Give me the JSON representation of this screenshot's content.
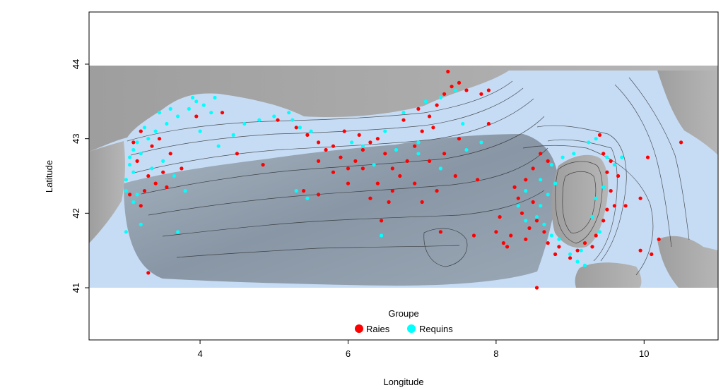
{
  "chart_data": {
    "type": "scatter",
    "xlabel": "Longitude",
    "ylabel": "Latitude",
    "xlim": [
      2.5,
      11.0
    ],
    "ylim": [
      40.3,
      44.7
    ],
    "raster_extent": {
      "lon": [
        2.5,
        11.0
      ],
      "lat": [
        41.0,
        44.0
      ]
    },
    "x_ticks": [
      {
        "value": 4,
        "label": "4"
      },
      {
        "value": 6,
        "label": "6"
      },
      {
        "value": 8,
        "label": "8"
      },
      {
        "value": 10,
        "label": "10"
      }
    ],
    "y_ticks": [
      {
        "value": 41,
        "label": "41"
      },
      {
        "value": 42,
        "label": "42"
      },
      {
        "value": 43,
        "label": "43"
      },
      {
        "value": 44,
        "label": "44"
      }
    ],
    "legend": {
      "title": "Groupe",
      "placement": "bottom-center",
      "entries": [
        {
          "label": "Raies",
          "color": "#ff0000"
        },
        {
          "label": "Requins",
          "color": "#00ffff"
        }
      ]
    },
    "colors": {
      "sea_shallow": "#c6dcf4",
      "sea_deep": "#8c9aa8",
      "land": "#a9a9a9",
      "contour": "#222222",
      "frame": "#000000"
    },
    "series": [
      {
        "name": "Raies",
        "color": "#ff0000",
        "points": [
          [
            3.25,
            42.3
          ],
          [
            3.2,
            42.1
          ],
          [
            3.3,
            42.5
          ],
          [
            3.15,
            42.7
          ],
          [
            3.35,
            42.9
          ],
          [
            3.45,
            43.0
          ],
          [
            3.6,
            42.8
          ],
          [
            3.75,
            42.6
          ],
          [
            3.5,
            42.55
          ],
          [
            3.4,
            42.4
          ],
          [
            3.1,
            42.95
          ],
          [
            3.2,
            43.1
          ],
          [
            3.55,
            42.35
          ],
          [
            3.3,
            41.2
          ],
          [
            3.05,
            42.25
          ],
          [
            3.95,
            43.3
          ],
          [
            4.3,
            43.35
          ],
          [
            4.5,
            42.8
          ],
          [
            4.85,
            42.65
          ],
          [
            5.05,
            43.25
          ],
          [
            5.3,
            43.15
          ],
          [
            5.45,
            43.05
          ],
          [
            5.6,
            42.95
          ],
          [
            5.7,
            42.85
          ],
          [
            5.8,
            42.9
          ],
          [
            5.9,
            42.75
          ],
          [
            6.0,
            42.6
          ],
          [
            6.1,
            42.7
          ],
          [
            6.2,
            42.85
          ],
          [
            6.3,
            42.95
          ],
          [
            6.4,
            43.0
          ],
          [
            6.5,
            42.8
          ],
          [
            6.6,
            42.6
          ],
          [
            6.7,
            42.5
          ],
          [
            6.8,
            42.7
          ],
          [
            6.9,
            42.9
          ],
          [
            7.0,
            43.1
          ],
          [
            7.1,
            43.3
          ],
          [
            7.2,
            43.45
          ],
          [
            7.3,
            43.6
          ],
          [
            7.4,
            43.7
          ],
          [
            7.5,
            43.75
          ],
          [
            7.6,
            43.65
          ],
          [
            7.8,
            43.6
          ],
          [
            7.9,
            43.2
          ],
          [
            7.5,
            43.0
          ],
          [
            7.3,
            42.8
          ],
          [
            7.1,
            42.7
          ],
          [
            6.9,
            42.4
          ],
          [
            6.6,
            42.3
          ],
          [
            6.4,
            42.4
          ],
          [
            6.2,
            42.6
          ],
          [
            6.0,
            42.4
          ],
          [
            5.8,
            42.55
          ],
          [
            5.6,
            42.7
          ],
          [
            5.4,
            42.3
          ],
          [
            5.6,
            42.25
          ],
          [
            6.55,
            42.15
          ],
          [
            6.45,
            41.9
          ],
          [
            7.25,
            41.75
          ],
          [
            7.45,
            42.5
          ],
          [
            7.75,
            42.45
          ],
          [
            7.0,
            42.15
          ],
          [
            7.2,
            42.3
          ],
          [
            6.3,
            42.2
          ],
          [
            5.95,
            43.1
          ],
          [
            6.15,
            43.05
          ],
          [
            6.75,
            43.25
          ],
          [
            6.95,
            43.4
          ],
          [
            7.15,
            43.15
          ],
          [
            8.3,
            42.2
          ],
          [
            8.4,
            42.45
          ],
          [
            8.5,
            42.6
          ],
          [
            8.6,
            42.8
          ],
          [
            8.7,
            42.7
          ],
          [
            8.35,
            42.0
          ],
          [
            8.45,
            41.8
          ],
          [
            8.55,
            41.9
          ],
          [
            8.65,
            41.75
          ],
          [
            8.2,
            41.7
          ],
          [
            8.1,
            41.6
          ],
          [
            8.0,
            41.75
          ],
          [
            8.05,
            41.95
          ],
          [
            8.25,
            42.35
          ],
          [
            8.15,
            41.55
          ],
          [
            8.4,
            41.65
          ],
          [
            8.5,
            42.15
          ],
          [
            8.8,
            41.45
          ],
          [
            9.0,
            41.4
          ],
          [
            9.1,
            41.5
          ],
          [
            9.2,
            41.6
          ],
          [
            9.3,
            41.55
          ],
          [
            9.35,
            41.7
          ],
          [
            9.45,
            41.9
          ],
          [
            9.5,
            42.05
          ],
          [
            9.55,
            42.3
          ],
          [
            9.5,
            42.55
          ],
          [
            9.45,
            42.8
          ],
          [
            9.4,
            43.05
          ],
          [
            9.55,
            42.7
          ],
          [
            9.6,
            42.1
          ],
          [
            9.65,
            42.5
          ],
          [
            9.95,
            42.2
          ],
          [
            9.75,
            42.1
          ],
          [
            8.85,
            41.55
          ],
          [
            8.7,
            41.6
          ],
          [
            9.95,
            41.5
          ],
          [
            10.1,
            41.45
          ],
          [
            10.2,
            41.65
          ],
          [
            10.05,
            42.75
          ],
          [
            10.5,
            42.95
          ],
          [
            8.55,
            41.0
          ],
          [
            7.7,
            41.7
          ],
          [
            7.35,
            43.9
          ],
          [
            7.9,
            43.65
          ]
        ]
      },
      {
        "name": "Requins",
        "color": "#00ffff",
        "points": [
          [
            3.05,
            42.75
          ],
          [
            3.1,
            42.85
          ],
          [
            3.15,
            42.95
          ],
          [
            3.05,
            42.65
          ],
          [
            3.1,
            42.55
          ],
          [
            3.0,
            42.45
          ],
          [
            3.2,
            42.8
          ],
          [
            3.3,
            43.0
          ],
          [
            3.4,
            43.1
          ],
          [
            3.55,
            43.2
          ],
          [
            3.7,
            43.3
          ],
          [
            3.85,
            43.4
          ],
          [
            3.95,
            43.5
          ],
          [
            4.05,
            43.45
          ],
          [
            4.15,
            43.35
          ],
          [
            4.2,
            43.55
          ],
          [
            3.9,
            43.55
          ],
          [
            3.6,
            43.4
          ],
          [
            3.45,
            43.35
          ],
          [
            3.25,
            43.15
          ],
          [
            3.0,
            42.3
          ],
          [
            3.15,
            42.25
          ],
          [
            3.1,
            42.15
          ],
          [
            3.35,
            42.6
          ],
          [
            3.5,
            42.7
          ],
          [
            3.65,
            42.5
          ],
          [
            4.0,
            43.1
          ],
          [
            4.25,
            42.9
          ],
          [
            4.45,
            43.05
          ],
          [
            4.6,
            43.2
          ],
          [
            4.8,
            43.25
          ],
          [
            5.0,
            43.3
          ],
          [
            5.2,
            43.35
          ],
          [
            5.25,
            43.25
          ],
          [
            5.35,
            43.15
          ],
          [
            5.5,
            43.1
          ],
          [
            3.2,
            41.85
          ],
          [
            3.0,
            41.75
          ],
          [
            3.7,
            41.75
          ],
          [
            3.8,
            42.3
          ],
          [
            5.3,
            42.3
          ],
          [
            5.45,
            42.2
          ],
          [
            6.2,
            42.9
          ],
          [
            6.5,
            43.1
          ],
          [
            6.75,
            43.35
          ],
          [
            7.05,
            43.5
          ],
          [
            7.25,
            43.55
          ],
          [
            7.45,
            43.65
          ],
          [
            7.55,
            43.2
          ],
          [
            7.6,
            42.85
          ],
          [
            7.8,
            42.95
          ],
          [
            7.25,
            42.6
          ],
          [
            6.95,
            42.95
          ],
          [
            6.65,
            42.85
          ],
          [
            6.35,
            42.65
          ],
          [
            6.05,
            42.95
          ],
          [
            6.45,
            41.7
          ],
          [
            6.95,
            42.8
          ],
          [
            8.6,
            42.45
          ],
          [
            8.75,
            42.65
          ],
          [
            8.9,
            42.75
          ],
          [
            9.05,
            42.8
          ],
          [
            9.25,
            42.95
          ],
          [
            9.35,
            43.0
          ],
          [
            9.5,
            42.75
          ],
          [
            9.6,
            42.65
          ],
          [
            9.45,
            42.35
          ],
          [
            9.35,
            42.2
          ],
          [
            9.3,
            41.95
          ],
          [
            9.4,
            41.75
          ],
          [
            8.7,
            42.25
          ],
          [
            8.6,
            42.1
          ],
          [
            8.55,
            41.95
          ],
          [
            8.65,
            41.85
          ],
          [
            8.75,
            41.7
          ],
          [
            8.85,
            41.65
          ],
          [
            9.0,
            41.45
          ],
          [
            9.1,
            41.35
          ],
          [
            9.2,
            41.3
          ],
          [
            9.15,
            41.5
          ],
          [
            8.4,
            41.9
          ],
          [
            8.3,
            42.1
          ],
          [
            8.4,
            42.3
          ],
          [
            8.8,
            42.4
          ],
          [
            9.7,
            42.75
          ]
        ]
      }
    ]
  }
}
